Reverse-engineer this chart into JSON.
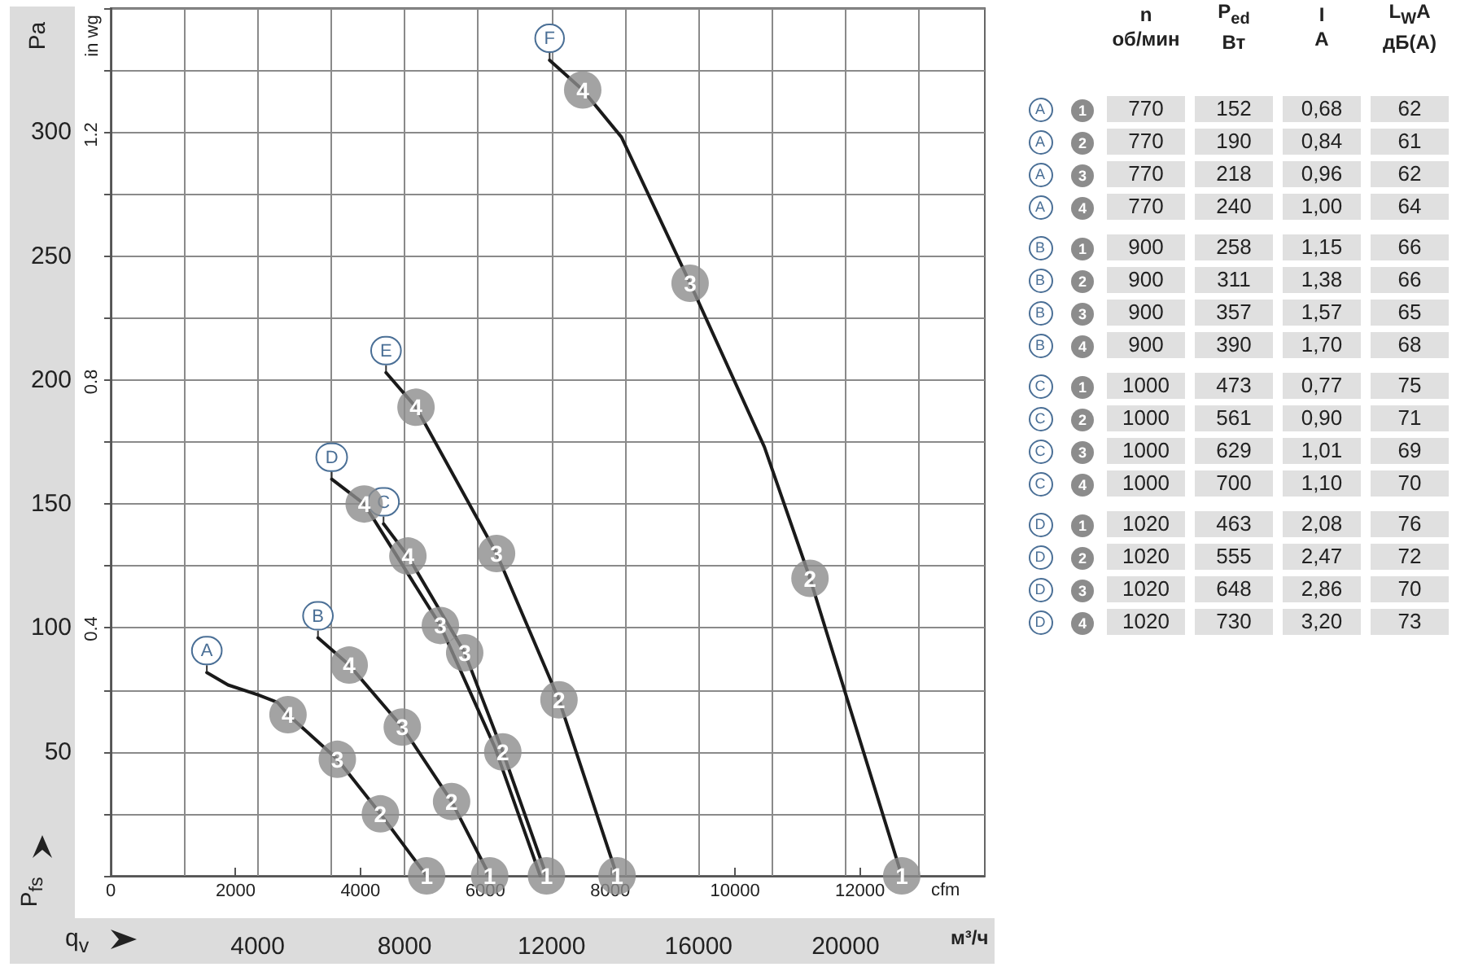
{
  "chart_data": [
    {
      "type": "line",
      "xlabel": "cfm",
      "x2label": "м³/ч",
      "ylabel": "Pa",
      "y2label": "in wg",
      "annotations": [
        "P$_{fs}$",
        "q$_{v}$",
        {
          "text": "4",
          "x": 2840,
          "y": 65
        },
        {
          "text": "3",
          "x": 3630,
          "y": 47
        },
        {
          "text": "2",
          "x": 4320,
          "y": 25
        },
        {
          "text": "1",
          "x": 5060,
          "y": 0
        },
        {
          "text": "4",
          "x": 3820,
          "y": 85
        },
        {
          "text": "3",
          "x": 4670,
          "y": 60
        },
        {
          "text": "2",
          "x": 5460,
          "y": 30
        },
        {
          "text": "1",
          "x": 6070,
          "y": 0
        },
        {
          "text": "4",
          "x": 4760,
          "y": 129
        },
        {
          "text": "3",
          "x": 5670,
          "y": 90
        },
        {
          "text": "2",
          "x": 6280,
          "y": 50
        },
        {
          "text": "1",
          "x": 6980,
          "y": 0
        },
        {
          "text": "4",
          "x": 4060,
          "y": 150
        },
        {
          "text": "3",
          "x": 5280,
          "y": 101
        },
        {
          "text": "4",
          "x": 4890,
          "y": 189
        },
        {
          "text": "3",
          "x": 6180,
          "y": 130
        },
        {
          "text": "2",
          "x": 7180,
          "y": 71
        },
        {
          "text": "1",
          "x": 8110,
          "y": 0
        },
        {
          "text": "4",
          "x": 7560,
          "y": 317
        },
        {
          "text": "3",
          "x": 9280,
          "y": 239
        },
        {
          "text": "2",
          "x": 11200,
          "y": 120
        },
        {
          "text": "1",
          "x": 12670,
          "y": 0
        }
      ],
      "xlim": [
        0,
        14000
      ],
      "xticks": [
        0,
        2000,
        4000,
        6000,
        8000,
        10000,
        12000
      ],
      "x2lim": [
        0,
        23790
      ],
      "x2ticks": [
        {
          "value": 0,
          "label": null
        },
        {
          "value": 2000,
          "label": null
        },
        4000,
        {
          "value": 6000,
          "label": null
        },
        8000,
        {
          "value": 10000,
          "label": null
        },
        12000,
        {
          "value": 14000,
          "label": null
        },
        16000,
        {
          "value": 18000,
          "label": null
        },
        20000,
        {
          "value": 22000,
          "label": null
        }
      ],
      "ylim": [
        0,
        350
      ],
      "yticks": [
        {
          "value": 0,
          "label": null
        },
        {
          "value": 25,
          "label": null
        },
        50,
        {
          "value": 75,
          "label": null
        },
        100,
        {
          "value": 125,
          "label": null
        },
        150,
        {
          "value": 175,
          "label": null
        },
        200,
        {
          "value": 225,
          "label": null
        },
        250,
        {
          "value": 275,
          "label": null
        },
        300,
        {
          "value": 325,
          "label": null
        },
        {
          "value": 350,
          "label": null
        }
      ],
      "y2lim": [
        0,
        1.405
      ],
      "y2ticks": [
        0.4,
        0.8,
        1.2
      ],
      "grid": true,
      "line_style": "solid",
      "series": [
        {
          "name": "A",
          "color": "#1a1a1a",
          "marker": "none",
          "x": [
            1540,
            1880,
            2360,
            2670,
            2840,
            3630,
            4320,
            5060
          ],
          "values": [
            82,
            77,
            73,
            70,
            65,
            47,
            25,
            0
          ]
        },
        {
          "name": "B",
          "color": "#1a1a1a",
          "marker": "none",
          "x": [
            3320,
            3820,
            4670,
            5460,
            6070
          ],
          "values": [
            96,
            85,
            60,
            30,
            0
          ]
        },
        {
          "name": "C",
          "color": "#1a1a1a",
          "marker": "none",
          "x": [
            4370,
            4760,
            5670,
            6280,
            6980
          ],
          "values": [
            142,
            129,
            90,
            50,
            0
          ]
        },
        {
          "name": "D",
          "color": "#1a1a1a",
          "marker": "none",
          "x": [
            3540,
            4060,
            5280,
            6150,
            6880
          ],
          "values": [
            160,
            150,
            101,
            52,
            0
          ]
        },
        {
          "name": "E",
          "color": "#1a1a1a",
          "marker": "none",
          "x": [
            4410,
            4890,
            6180,
            7180,
            8110
          ],
          "values": [
            203,
            189,
            130,
            71,
            0
          ]
        },
        {
          "name": "F",
          "color": "#1a1a1a",
          "marker": "none",
          "x": [
            7030,
            7560,
            8180,
            9280,
            10470,
            11200,
            12670
          ],
          "values": [
            329,
            317,
            298,
            239,
            173,
            120,
            0
          ]
        },
        {
          "type": "scatter",
          "color": "#8c8c8c",
          "marker": "circle",
          "x": [
            2840,
            3630,
            4320,
            5060
          ],
          "values": [
            65,
            47,
            25,
            0
          ]
        },
        {
          "type": "scatter",
          "color": "#8c8c8c",
          "marker": "circle",
          "x": [
            3820,
            4670,
            5460,
            6070
          ],
          "values": [
            85,
            60,
            30,
            0
          ]
        },
        {
          "type": "scatter",
          "color": "#8c8c8c",
          "marker": "circle",
          "x": [
            4760,
            5670,
            6280,
            6980
          ],
          "values": [
            129,
            90,
            50,
            0
          ]
        },
        {
          "type": "scatter",
          "color": "#8c8c8c",
          "marker": "circle",
          "x": [
            4060,
            5280
          ],
          "values": [
            150,
            101
          ]
        },
        {
          "type": "scatter",
          "color": "#8c8c8c",
          "marker": "circle",
          "x": [
            4890,
            6180,
            7180,
            8110
          ],
          "values": [
            189,
            130,
            71,
            0
          ]
        },
        {
          "type": "scatter",
          "color": "#8c8c8c",
          "marker": "circle",
          "x": [
            7560,
            9280,
            11200,
            12670
          ],
          "values": [
            317,
            239,
            120,
            0
          ]
        }
      ]
    },
    {
      "type": "other",
      "categories": [
        "n\nоб/мин",
        "P$_{ed}$\nВт",
        "I\nA",
        "L$_{W}$A\nдБ(A)"
      ],
      "y_categories": [
        "A",
        "A",
        "A",
        "A",
        "B",
        "B",
        "B",
        "B",
        "C",
        "C",
        "C",
        "C",
        "D",
        "D",
        "D",
        "D"
      ],
      "y2_categories": [
        "1",
        "2",
        "3",
        "4",
        "1",
        "2",
        "3",
        "4",
        "1",
        "2",
        "3",
        "4",
        "1",
        "2",
        "3",
        "4"
      ],
      "cell_labels": [
        [
          "770",
          "152",
          "0,68",
          "62"
        ],
        [
          "770",
          "190",
          "0,84",
          "61"
        ],
        [
          "770",
          "218",
          "0,96",
          "62"
        ],
        [
          "770",
          "240",
          "1,00",
          "64"
        ],
        [
          "900",
          "258",
          "1,15",
          "66"
        ],
        [
          "900",
          "311",
          "1,38",
          "66"
        ],
        [
          "900",
          "357",
          "1,57",
          "65"
        ],
        [
          "900",
          "390",
          "1,70",
          "68"
        ],
        [
          "1000",
          "473",
          "0,77",
          "75"
        ],
        [
          "1000",
          "561",
          "0,90",
          "71"
        ],
        [
          "1000",
          "629",
          "1,01",
          "69"
        ],
        [
          "1000",
          "700",
          "1,10",
          "70"
        ],
        [
          "1020",
          "463",
          "2,08",
          "76"
        ],
        [
          "1020",
          "555",
          "2,47",
          "72"
        ],
        [
          "1020",
          "648",
          "2,86",
          "70"
        ],
        [
          "1020",
          "730",
          "3,20",
          "73"
        ]
      ]
    }
  ]
}
